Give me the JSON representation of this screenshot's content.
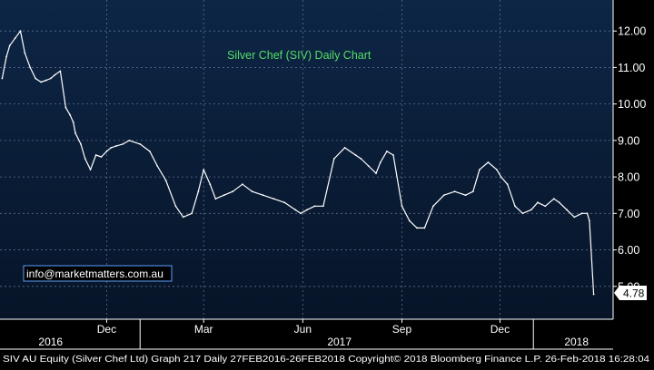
{
  "chart_data": {
    "type": "line",
    "title": "Silver Chef (SIV) Daily Chart",
    "watermark": "info@marketmatters.com.au",
    "last_price_label": "4.78",
    "y_ticks": [
      "12.00",
      "11.00",
      "10.00",
      "9.00",
      "8.00",
      "7.00",
      "6.00",
      "5.00"
    ],
    "y_tick_values": [
      12,
      11,
      10,
      9,
      8,
      7,
      6,
      5
    ],
    "ylim": [
      4.1,
      12.85
    ],
    "xlim": [
      "2016-08-24",
      "2018-03-16"
    ],
    "x_month_labels": [
      {
        "label": "Dec",
        "date": "2016-12-01"
      },
      {
        "label": "Mar",
        "date": "2017-03-01"
      },
      {
        "label": "Jun",
        "date": "2017-06-01"
      },
      {
        "label": "Sep",
        "date": "2017-09-01"
      },
      {
        "label": "Dec",
        "date": "2017-12-01"
      }
    ],
    "x_year_labels": [
      {
        "label": "2016",
        "date": "2016-10-10"
      },
      {
        "label": "2017",
        "date": "2017-07-05"
      },
      {
        "label": "2018",
        "date": "2018-02-10"
      }
    ],
    "x_year_dividers": [
      "2017-01-01",
      "2018-01-01"
    ],
    "series": [
      {
        "color": "#ffffff",
        "x": [
          "2016-08-26",
          "2016-08-30",
          "2016-09-02",
          "2016-09-07",
          "2016-09-12",
          "2016-09-16",
          "2016-09-21",
          "2016-09-26",
          "2016-10-01",
          "2016-10-06",
          "2016-10-10",
          "2016-10-14",
          "2016-10-19",
          "2016-10-24",
          "2016-10-28",
          "2016-10-31",
          "2016-11-02",
          "2016-11-07",
          "2016-11-11",
          "2016-11-16",
          "2016-11-21",
          "2016-11-26",
          "2016-12-01",
          "2016-12-05",
          "2016-12-10",
          "2016-12-16",
          "2016-12-22",
          "2017-01-01",
          "2017-01-10",
          "2017-01-17",
          "2017-01-25",
          "2017-02-03",
          "2017-02-10",
          "2017-02-18",
          "2017-02-24",
          "2017-03-01",
          "2017-03-07",
          "2017-03-12",
          "2017-03-20",
          "2017-03-28",
          "2017-04-06",
          "2017-04-15",
          "2017-04-25",
          "2017-05-05",
          "2017-05-15",
          "2017-05-25",
          "2017-05-30",
          "2017-06-05",
          "2017-06-12",
          "2017-06-20",
          "2017-06-30",
          "2017-07-10",
          "2017-07-20",
          "2017-07-25",
          "2017-08-01",
          "2017-08-08",
          "2017-08-12",
          "2017-08-18",
          "2017-08-24",
          "2017-09-01",
          "2017-09-08",
          "2017-09-15",
          "2017-09-22",
          "2017-09-30",
          "2017-10-10",
          "2017-10-20",
          "2017-10-30",
          "2017-11-06",
          "2017-11-12",
          "2017-11-20",
          "2017-11-28",
          "2017-12-02",
          "2017-12-08",
          "2017-12-15",
          "2017-12-22",
          "2017-12-30",
          "2018-01-05",
          "2018-01-12",
          "2018-01-20",
          "2018-01-25",
          "2018-02-01",
          "2018-02-08",
          "2018-02-15",
          "2018-02-20",
          "2018-02-22",
          "2018-02-26"
        ],
        "y": [
          10.7,
          11.3,
          11.6,
          11.8,
          12.0,
          11.4,
          11.0,
          10.7,
          10.6,
          10.65,
          10.7,
          10.8,
          10.9,
          9.9,
          9.7,
          9.5,
          9.2,
          8.9,
          8.5,
          8.2,
          8.6,
          8.55,
          8.7,
          8.8,
          8.85,
          8.9,
          9.0,
          8.9,
          8.7,
          8.3,
          7.9,
          7.2,
          6.9,
          7.0,
          7.6,
          8.2,
          7.8,
          7.4,
          7.5,
          7.6,
          7.8,
          7.6,
          7.5,
          7.4,
          7.3,
          7.1,
          7.0,
          7.1,
          7.2,
          7.2,
          8.5,
          8.8,
          8.6,
          8.5,
          8.3,
          8.1,
          8.4,
          8.7,
          8.6,
          7.2,
          6.8,
          6.6,
          6.6,
          7.2,
          7.5,
          7.6,
          7.5,
          7.6,
          8.2,
          8.4,
          8.2,
          8.0,
          7.8,
          7.2,
          7.0,
          7.1,
          7.3,
          7.2,
          7.4,
          7.3,
          7.1,
          6.9,
          7.0,
          7.0,
          6.8,
          4.78
        ]
      }
    ]
  },
  "footer": {
    "text": "SIV AU Equity (Silver Chef Ltd) Graph 217  Daily 27FEB2016-26FEB2018  Copyright© 2018 Bloomberg Finance L.P.   26-Feb-2018 16:28:04"
  },
  "colors": {
    "background": "#000000",
    "plot_background": "#0a1e38",
    "price_line": "#ffffff",
    "title": "#55dd66",
    "watermark_text": "#ffffff",
    "watermark_border": "#5aa0ff",
    "grid": "#5a6e8a",
    "tick_text": "#ffffff",
    "footer_text": "#ffffff"
  }
}
